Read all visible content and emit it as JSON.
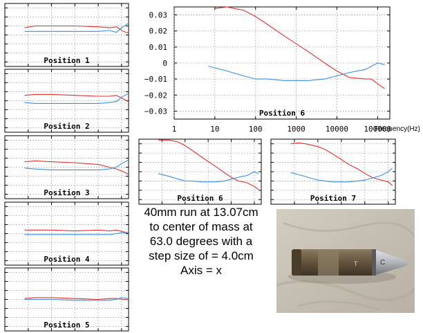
{
  "chart_data": [
    {
      "id": "pos1",
      "type": "line",
      "title": "Position 1",
      "xscale": "log",
      "xlim": [
        1,
        200000
      ],
      "ylim": [
        -0.035,
        0.035
      ],
      "series": [
        {
          "color": "#e03030",
          "x": [
            7,
            20,
            100,
            1000,
            10000,
            30000,
            60000,
            120000,
            200000
          ],
          "y": [
            0.008,
            0.01,
            0.01,
            0.01,
            0.009,
            0.008,
            0.009,
            0.004,
            0.002
          ]
        },
        {
          "color": "#3a8ee6",
          "x": [
            7,
            20,
            100,
            1000,
            10000,
            30000,
            60000,
            100000,
            200000
          ],
          "y": [
            0.004,
            0.004,
            0.004,
            0.004,
            0.004,
            0.005,
            0.003,
            0.008,
            0.013
          ]
        }
      ]
    },
    {
      "id": "pos2",
      "type": "line",
      "title": "Position 2",
      "xscale": "log",
      "xlim": [
        1,
        200000
      ],
      "ylim": [
        -0.035,
        0.035
      ],
      "series": [
        {
          "color": "#e03030",
          "x": [
            7,
            20,
            100,
            1000,
            10000,
            30000,
            60000,
            120000,
            200000
          ],
          "y": [
            0.006,
            0.007,
            0.007,
            0.006,
            0.005,
            0.005,
            0.006,
            0.002,
            -0.001
          ]
        },
        {
          "color": "#3a8ee6",
          "x": [
            7,
            20,
            100,
            1000,
            10000,
            30000,
            60000,
            100000,
            200000
          ],
          "y": [
            -0.002,
            -0.003,
            -0.003,
            -0.003,
            -0.003,
            -0.002,
            -0.001,
            0.004,
            0.008
          ]
        }
      ]
    },
    {
      "id": "pos3",
      "type": "line",
      "title": "Position 3",
      "xscale": "log",
      "xlim": [
        1,
        200000
      ],
      "ylim": [
        -0.035,
        0.035
      ],
      "series": [
        {
          "color": "#e03030",
          "x": [
            7,
            20,
            100,
            1000,
            10000,
            30000,
            60000,
            120000,
            200000
          ],
          "y": [
            0.006,
            0.007,
            0.006,
            0.005,
            0.003,
            0.0,
            -0.002,
            -0.005,
            -0.008
          ]
        },
        {
          "color": "#3a8ee6",
          "x": [
            7,
            20,
            100,
            1000,
            10000,
            30000,
            60000,
            100000,
            200000
          ],
          "y": [
            -0.001,
            -0.002,
            -0.003,
            -0.003,
            -0.003,
            -0.002,
            0.0,
            0.004,
            0.008
          ]
        }
      ]
    },
    {
      "id": "pos4",
      "type": "line",
      "title": "Position 4",
      "xscale": "log",
      "xlim": [
        1,
        200000
      ],
      "ylim": [
        -0.035,
        0.035
      ],
      "series": [
        {
          "color": "#e03030",
          "x": [
            7,
            20,
            100,
            1000,
            10000,
            30000,
            60000,
            120000,
            200000
          ],
          "y": [
            0.004,
            0.004,
            0.004,
            0.003,
            0.004,
            0.003,
            0.004,
            0.002,
            0.001
          ]
        },
        {
          "color": "#3a8ee6",
          "x": [
            7,
            20,
            100,
            1000,
            10000,
            30000,
            60000,
            100000,
            200000
          ],
          "y": [
            -0.001,
            -0.001,
            -0.001,
            -0.001,
            -0.001,
            -0.001,
            0.0,
            0.001,
            0.001
          ]
        }
      ]
    },
    {
      "id": "pos5",
      "type": "line",
      "title": "Position 5",
      "xscale": "log",
      "xlim": [
        1,
        200000
      ],
      "ylim": [
        -0.035,
        0.035
      ],
      "series": [
        {
          "color": "#e03030",
          "x": [
            7,
            20,
            100,
            1000,
            10000,
            30000,
            60000,
            120000,
            200000
          ],
          "y": [
            0.001,
            0.002,
            0.002,
            0.001,
            0.0,
            0.001,
            0.001,
            0.0,
            0.0
          ]
        },
        {
          "color": "#3a8ee6",
          "x": [
            7,
            20,
            100,
            1000,
            10000,
            30000,
            60000,
            100000,
            200000
          ],
          "y": [
            0.0,
            0.0,
            0.0,
            -0.001,
            -0.001,
            -0.001,
            0.0,
            0.002,
            0.001
          ]
        }
      ]
    },
    {
      "id": "pos6big",
      "type": "line",
      "title": "Position 6",
      "xlabel": "Frequency(Hz)",
      "xscale": "log",
      "xlim": [
        1,
        200000
      ],
      "ylim": [
        -0.035,
        0.035
      ],
      "yticks": [
        0.03,
        0.02,
        0.01,
        0,
        -0.01,
        -0.02,
        -0.03
      ],
      "ytick_labels": [
        "0.03",
        "0.02",
        "0.01",
        "0",
        "−0.01",
        "−0.02",
        "−0.03"
      ],
      "xticks": [
        1,
        10,
        100,
        1000,
        10000,
        100000
      ],
      "xtick_labels": [
        "1",
        "10",
        "100",
        "1000",
        "10000",
        "100000"
      ],
      "series": [
        {
          "color": "#e03030",
          "x": [
            10,
            20,
            30,
            50,
            100,
            200,
            500,
            1000,
            2000,
            5000,
            10000,
            20000,
            50000,
            70000,
            100000,
            150000
          ],
          "y": [
            0.034,
            0.035,
            0.034,
            0.033,
            0.029,
            0.024,
            0.017,
            0.012,
            0.007,
            0.0,
            -0.005,
            -0.009,
            -0.01,
            -0.01,
            -0.013,
            -0.016
          ]
        },
        {
          "color": "#3a8ee6",
          "x": [
            7,
            20,
            50,
            100,
            200,
            500,
            1000,
            2000,
            5000,
            10000,
            20000,
            50000,
            100000,
            150000
          ],
          "y": [
            -0.002,
            -0.005,
            -0.008,
            -0.01,
            -0.01,
            -0.011,
            -0.011,
            -0.011,
            -0.01,
            -0.008,
            -0.006,
            -0.004,
            0.0,
            -0.001
          ]
        }
      ]
    },
    {
      "id": "pos6small",
      "type": "line",
      "title": "Position 6",
      "xscale": "log",
      "xlim": [
        1,
        200000
      ],
      "ylim": [
        -0.035,
        0.035
      ],
      "series": [
        {
          "color": "#e03030",
          "x": [
            7,
            20,
            50,
            100,
            200,
            500,
            1000,
            2000,
            5000,
            10000,
            20000,
            50000,
            100000,
            150000
          ],
          "y": [
            0.034,
            0.034,
            0.032,
            0.028,
            0.023,
            0.016,
            0.011,
            0.006,
            -0.001,
            -0.006,
            -0.01,
            -0.012,
            -0.016,
            -0.019
          ]
        },
        {
          "color": "#3a8ee6",
          "x": [
            7,
            20,
            50,
            100,
            200,
            500,
            1000,
            2000,
            5000,
            10000,
            20000,
            50000,
            100000,
            150000
          ],
          "y": [
            -0.002,
            -0.005,
            -0.008,
            -0.01,
            -0.01,
            -0.011,
            -0.011,
            -0.011,
            -0.01,
            -0.008,
            -0.006,
            -0.004,
            0.0,
            -0.002
          ]
        }
      ]
    },
    {
      "id": "pos7",
      "type": "line",
      "title": "Position 7",
      "xscale": "log",
      "xlim": [
        1,
        200000
      ],
      "ylim": [
        -0.035,
        0.035
      ],
      "series": [
        {
          "color": "#e03030",
          "x": [
            7,
            15,
            30,
            100,
            200,
            500,
            1000,
            2000,
            5000,
            10000,
            20000,
            50000,
            100000,
            150000
          ],
          "y": [
            0.03,
            0.031,
            0.03,
            0.027,
            0.024,
            0.018,
            0.013,
            0.008,
            0.003,
            -0.002,
            -0.006,
            -0.009,
            -0.011,
            -0.015
          ]
        },
        {
          "color": "#3a8ee6",
          "x": [
            7,
            20,
            50,
            100,
            200,
            500,
            1000,
            2000,
            5000,
            10000,
            20000,
            50000,
            100000,
            150000
          ],
          "y": [
            -0.001,
            -0.004,
            -0.007,
            -0.009,
            -0.01,
            -0.011,
            -0.011,
            -0.011,
            -0.01,
            -0.009,
            -0.007,
            -0.004,
            0.0,
            0.004
          ]
        }
      ]
    }
  ],
  "caption": {
    "line1": "40mm run at 13.07cm",
    "line2": "to center of mass at",
    "line3": "63.0 degrees with a",
    "line4": "step size of = 4.0cm",
    "line5": "Axis = x"
  },
  "photo": {
    "subject": "40mm projectile round on cloth",
    "colors": {
      "cloth": "#c8c2b6",
      "body": "#6a5a44",
      "tip": "#b9bcc0"
    }
  }
}
